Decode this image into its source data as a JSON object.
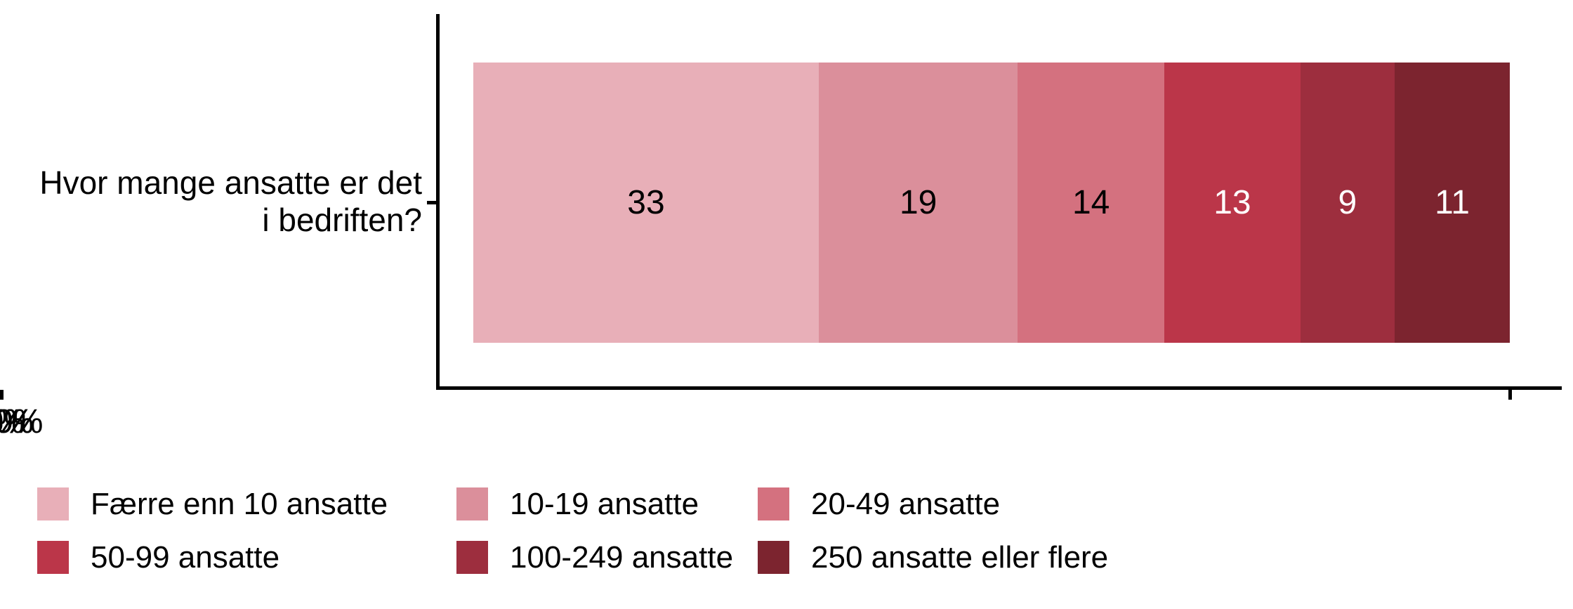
{
  "chart_data": {
    "type": "bar",
    "stacked": true,
    "orientation": "horizontal",
    "title": "",
    "xlabel": "",
    "ylabel": "",
    "question_label": "Hvor mange ansatte er det i bedriften?",
    "y_label_lines": [
      "Hvor mange ansatte er det",
      "i bedriften?"
    ],
    "x_ticks": [
      "0%",
      "25%",
      "50%",
      "75%",
      "100%"
    ],
    "xlim": [
      0,
      100
    ],
    "grid": false,
    "legend_position": "bottom",
    "categories": [
      "Færre enn 10 ansatte",
      "10-19 ansatte",
      "20-49 ansatte",
      "50-99 ansatte",
      "100-249 ansatte",
      "250 ansatte eller flere"
    ],
    "values": [
      33,
      19,
      14,
      13,
      9,
      11
    ],
    "series": [
      {
        "name": "Færre enn 10 ansatte",
        "value": 33,
        "color": "#E8AFB8",
        "label_color": "#000000"
      },
      {
        "name": "10-19 ansatte",
        "value": 19,
        "color": "#DB8F9B",
        "label_color": "#000000"
      },
      {
        "name": "20-49 ansatte",
        "value": 14,
        "color": "#D4717F",
        "label_color": "#000000"
      },
      {
        "name": "50-99 ansatte",
        "value": 13,
        "color": "#BB3649",
        "label_color": "#FFFFFF"
      },
      {
        "name": "100-249 ansatte",
        "value": 9,
        "color": "#9D2E3E",
        "label_color": "#FFFFFF"
      },
      {
        "name": "250 ansatte eller flere",
        "value": 11,
        "color": "#7C242F",
        "label_color": "#FFFFFF"
      }
    ],
    "axis_color": "#000000"
  }
}
